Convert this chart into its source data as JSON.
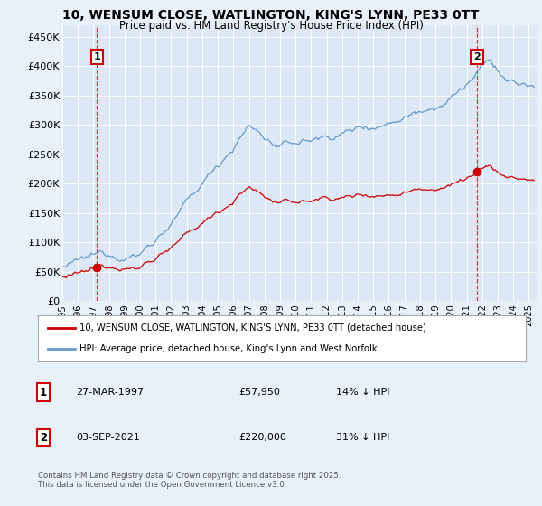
{
  "title_line1": "10, WENSUM CLOSE, WATLINGTON, KING'S LYNN, PE33 0TT",
  "title_line2": "Price paid vs. HM Land Registry's House Price Index (HPI)",
  "price_paid_color": "#cc0000",
  "hpi_color": "#6699cc",
  "sale1_year": 1997.23,
  "sale1_price": 57950,
  "sale2_year": 2021.67,
  "sale2_price": 220000,
  "legend_line1": "10, WENSUM CLOSE, WATLINGTON, KING'S LYNN, PE33 0TT (detached house)",
  "legend_line2": "HPI: Average price, detached house, King's Lynn and West Norfolk",
  "table_row1": [
    "1",
    "27-MAR-1997",
    "£57,950",
    "14% ↓ HPI"
  ],
  "table_row2": [
    "2",
    "03-SEP-2021",
    "£220,000",
    "31% ↓ HPI"
  ],
  "footnote": "Contains HM Land Registry data © Crown copyright and database right 2025.\nThis data is licensed under the Open Government Licence v3.0.",
  "background_color": "#e8f0f8",
  "plot_bg_color": "#dce8f5",
  "xlim_start": 1995.0,
  "xlim_end": 2025.5,
  "ylim_min": 0,
  "ylim_max": 470000,
  "yticks": [
    0,
    50000,
    100000,
    150000,
    200000,
    250000,
    300000,
    350000,
    400000,
    450000
  ],
  "ytick_labels": [
    "£0",
    "£50K",
    "£100K",
    "£150K",
    "£200K",
    "£250K",
    "£300K",
    "£350K",
    "£400K",
    "£450K"
  ]
}
